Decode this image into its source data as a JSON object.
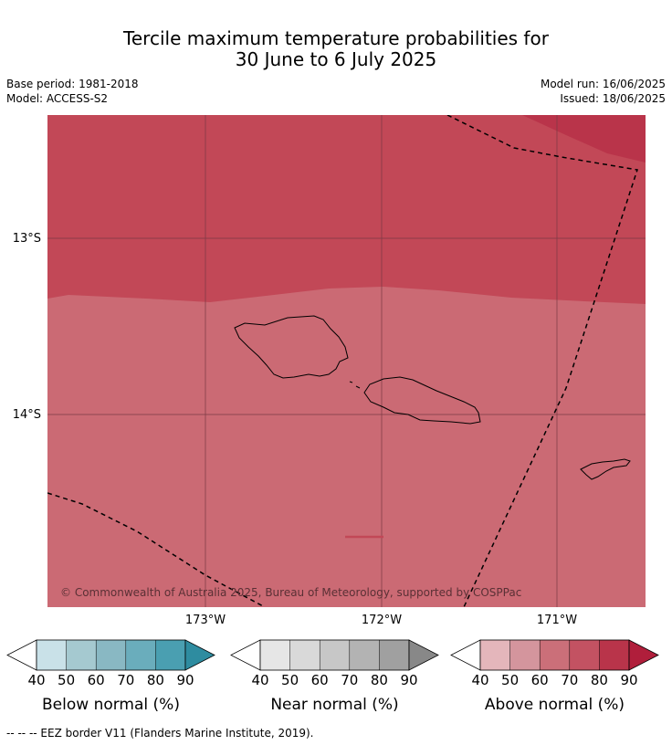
{
  "title": [
    "Tercile maximum temperature probabilities for",
    "30 June to 6 July 2025"
  ],
  "meta_left": [
    "Base period: 1981-2018",
    "Model: ACCESS-S2"
  ],
  "meta_right": [
    "Model run: 16/06/2025",
    "Issued: 18/06/2025"
  ],
  "map": {
    "lat_labels": [
      "13°S",
      "14°S"
    ],
    "lon_labels": [
      "173°W",
      "172°W",
      "171°W"
    ],
    "copyright": "© Commonwealth of Australia 2025, Bureau of Meteorology, supported by COSPPac",
    "colors": {
      "band_80_90": "#b9344a",
      "band_70_80": "#c24857",
      "band_60_70": "#cb6a74"
    }
  },
  "colorbars": [
    {
      "label": "Below normal (%)",
      "ticks": [
        "40",
        "50",
        "60",
        "70",
        "80",
        "90"
      ],
      "colors": [
        "#ffffff",
        "#c9e1e8",
        "#a5c9d0",
        "#89b8c3",
        "#6aadbc",
        "#4a9fb1",
        "#2e8ca0"
      ]
    },
    {
      "label": "Near normal (%)",
      "ticks": [
        "40",
        "50",
        "60",
        "70",
        "80",
        "90"
      ],
      "colors": [
        "#ffffff",
        "#e6e6e6",
        "#d9d9d9",
        "#c7c7c7",
        "#b3b3b3",
        "#a0a0a0",
        "#888888"
      ]
    },
    {
      "label": "Above normal (%)",
      "ticks": [
        "40",
        "50",
        "60",
        "70",
        "80",
        "90"
      ],
      "colors": [
        "#ffffff",
        "#e4b6bb",
        "#d4959d",
        "#cb6f79",
        "#c35262",
        "#b9344a",
        "#b01e3b"
      ]
    }
  ],
  "footnote": "--  --  -- EEZ border V11 (Flanders Marine Institute, 2019)."
}
